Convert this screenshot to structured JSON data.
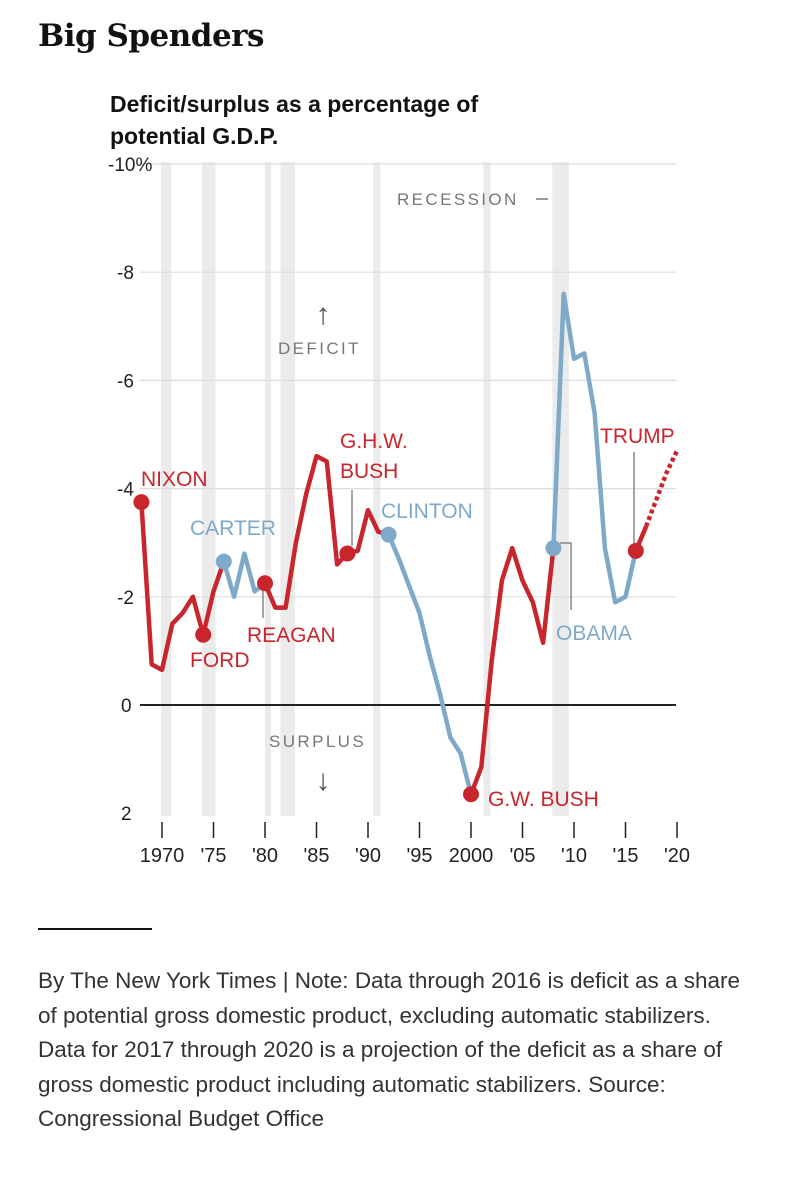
{
  "title": "Big Spenders",
  "subtitle": "Deficit/surplus as a percentage of potential G.D.P.",
  "note": "By The New York Times | Note: Data through 2016 is deficit as a share of potential gross domestic product, excluding automatic stabilizers. Data for 2017 through 2020 is a projection of the deficit as a share of gross domestic product including automatic stabilizers. Source: Congressional Budget Office",
  "colors": {
    "republican": "#c8262c",
    "democrat": "#7ea9c8",
    "recession": "#ebebeb",
    "grid": "#dddddd",
    "zero_line": "#222222",
    "axis_text": "#222222",
    "annotation": "#777777"
  },
  "chart_data": {
    "type": "line",
    "title": "Big Spenders",
    "ylabel": "Deficit/surplus as a percentage of potential G.D.P.",
    "ylim": [
      -10,
      2
    ],
    "y_inverted": true,
    "xlim": [
      1968,
      2021
    ],
    "y_ticks": [
      -10,
      -8,
      -6,
      -4,
      -2,
      0,
      2
    ],
    "y_tick_labels": [
      "-10%",
      "-8",
      "-6",
      "-4",
      "-2",
      "0",
      "2"
    ],
    "x_ticks": [
      1970,
      1975,
      1980,
      1985,
      1990,
      1995,
      2000,
      2005,
      2010,
      2015,
      2020
    ],
    "x_tick_labels": [
      "1970",
      "'75",
      "'80",
      "'85",
      "'90",
      "'95",
      "2000",
      "'05",
      "'10",
      "'15",
      "'20"
    ],
    "recessions": [
      {
        "start": 1969.9,
        "end": 1970.9
      },
      {
        "start": 1973.9,
        "end": 1975.2
      },
      {
        "start": 1980.0,
        "end": 1980.6
      },
      {
        "start": 1981.5,
        "end": 1982.9
      },
      {
        "start": 1990.5,
        "end": 1991.2
      },
      {
        "start": 2001.2,
        "end": 2001.9
      },
      {
        "start": 2007.9,
        "end": 2009.5
      }
    ],
    "annotations": {
      "recession_label": "RECESSION",
      "deficit_label": "DEFICIT",
      "surplus_label": "SURPLUS",
      "deficit_arrow": "↑",
      "surplus_arrow": "↓"
    },
    "series": [
      {
        "name": "Nixon",
        "label": "NIXON",
        "party": "R",
        "x": [
          1968,
          1969,
          1970,
          1971,
          1972,
          1973,
          1974
        ],
        "y": [
          -3.75,
          -0.75,
          -0.65,
          -1.5,
          -1.7,
          -2.0,
          -1.3
        ]
      },
      {
        "name": "Ford",
        "label": "FORD",
        "party": "R",
        "x": [
          1974,
          1975,
          1976
        ],
        "y": [
          -1.3,
          -2.1,
          -2.65
        ]
      },
      {
        "name": "Carter",
        "label": "CARTER",
        "party": "D",
        "x": [
          1976,
          1977,
          1978,
          1979,
          1980
        ],
        "y": [
          -2.65,
          -2.0,
          -2.8,
          -2.1,
          -2.25
        ]
      },
      {
        "name": "Reagan",
        "label": "REAGAN",
        "party": "R",
        "x": [
          1980,
          1981,
          1982,
          1983,
          1984,
          1985,
          1986,
          1987,
          1988
        ],
        "y": [
          -2.25,
          -1.8,
          -1.8,
          -3.0,
          -3.9,
          -4.6,
          -4.5,
          -2.6,
          -2.8
        ]
      },
      {
        "name": "G.H.W. Bush",
        "label": "G.H.W. BUSH",
        "party": "R",
        "x": [
          1988,
          1989,
          1990,
          1991,
          1992
        ],
        "y": [
          -2.8,
          -2.85,
          -3.6,
          -3.2,
          -3.15
        ]
      },
      {
        "name": "Clinton",
        "label": "CLINTON",
        "party": "D",
        "x": [
          1992,
          1993,
          1994,
          1995,
          1996,
          1997,
          1998,
          1999,
          2000
        ],
        "y": [
          -3.15,
          -2.7,
          -2.2,
          -1.7,
          -0.9,
          -0.2,
          0.6,
          0.9,
          1.65
        ]
      },
      {
        "name": "G.W. Bush",
        "label": "G.W. BUSH",
        "party": "R",
        "x": [
          2000,
          2001,
          2002,
          2003,
          2004,
          2005,
          2006,
          2007,
          2008
        ],
        "y": [
          1.65,
          1.15,
          -0.8,
          -2.3,
          -2.9,
          -2.3,
          -1.9,
          -1.15,
          -2.9
        ]
      },
      {
        "name": "Obama",
        "label": "OBAMA",
        "party": "D",
        "x": [
          2008,
          2009,
          2010,
          2011,
          2012,
          2013,
          2014,
          2015,
          2016
        ],
        "y": [
          -2.9,
          -7.6,
          -6.4,
          -6.5,
          -5.4,
          -2.9,
          -1.9,
          -2.0,
          -2.85
        ]
      },
      {
        "name": "Trump",
        "label": "TRUMP",
        "party": "R",
        "x": [
          2016,
          2017,
          2018,
          2019,
          2020
        ],
        "y": [
          -2.85,
          -3.3,
          -3.8,
          -4.3,
          -4.7
        ],
        "projected": true
      }
    ]
  }
}
